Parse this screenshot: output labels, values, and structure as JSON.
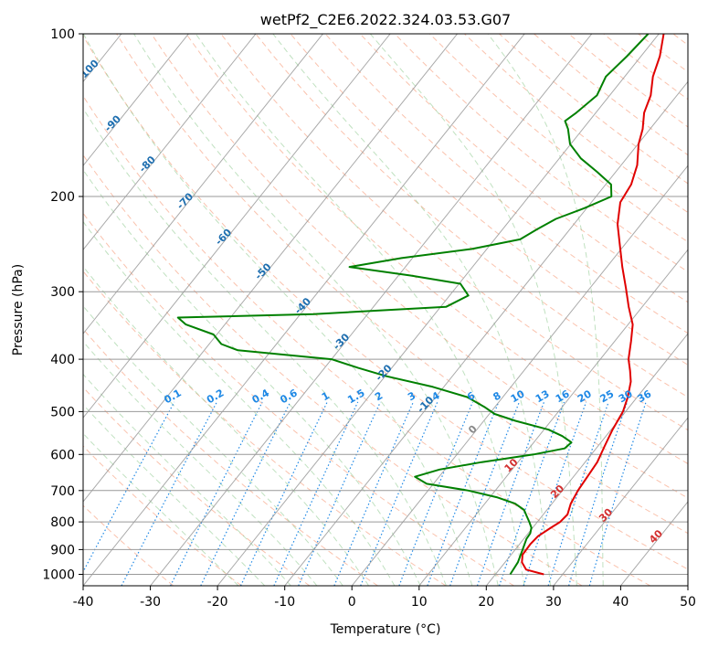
{
  "chart_data": {
    "type": "line",
    "title": "wetPf2_C2E6.2022.324.03.53.G07",
    "xlabel": "Temperature (°C)",
    "ylabel": "Pressure (hPa)",
    "xlim": [
      -40,
      50
    ],
    "ylim": [
      1050,
      100
    ],
    "y_scale": "log",
    "grid": true,
    "x_ticks": [
      -40,
      -30,
      -20,
      -10,
      0,
      10,
      20,
      30,
      40,
      50
    ],
    "y_ticks": [
      100,
      200,
      300,
      400,
      500,
      600,
      700,
      800,
      900,
      1000
    ],
    "isotherm_labels": [
      "-100",
      "-90",
      "-80",
      "-70",
      "-60",
      "-50",
      "-40",
      "-30",
      "-20",
      "-10",
      "0",
      "10",
      "20",
      "30",
      "40"
    ],
    "mixing_ratio_labels": [
      "0.1",
      "0.2",
      "0.4",
      "0.6",
      "1",
      "1.5",
      "2",
      "3",
      "4",
      "6",
      "8",
      "10",
      "13",
      "16",
      "20",
      "25",
      "30",
      "36"
    ],
    "series": [
      {
        "color": "#e00000",
        "points": [
          [
            1000,
            27.2
          ],
          [
            980,
            24.0
          ],
          [
            950,
            22.5
          ],
          [
            920,
            21.7
          ],
          [
            880,
            21.6
          ],
          [
            850,
            21.8
          ],
          [
            820,
            22.7
          ],
          [
            800,
            23.4
          ],
          [
            775,
            23.6
          ],
          [
            740,
            22.8
          ],
          [
            700,
            22.3
          ],
          [
            650,
            22.0
          ],
          [
            620,
            21.8
          ],
          [
            580,
            21.0
          ],
          [
            540,
            20.2
          ],
          [
            500,
            19.6
          ],
          [
            470,
            18.6
          ],
          [
            440,
            17.2
          ],
          [
            420,
            15.8
          ],
          [
            400,
            14.2
          ],
          [
            370,
            12.4
          ],
          [
            345,
            10.7
          ],
          [
            320,
            8.0
          ],
          [
            295,
            5.3
          ],
          [
            270,
            2.3
          ],
          [
            245,
            -0.8
          ],
          [
            225,
            -3.5
          ],
          [
            205,
            -5.7
          ],
          [
            190,
            -6.2
          ],
          [
            175,
            -7.6
          ],
          [
            160,
            -9.9
          ],
          [
            150,
            -11.1
          ],
          [
            140,
            -12.8
          ],
          [
            130,
            -13.9
          ],
          [
            120,
            -15.8
          ],
          [
            110,
            -17.2
          ],
          [
            100,
            -19.3
          ]
        ]
      },
      {
        "color": "#008000",
        "points": [
          [
            1000,
            22.2
          ],
          [
            950,
            21.9
          ],
          [
            900,
            21.1
          ],
          [
            860,
            20.4
          ],
          [
            840,
            20.3
          ],
          [
            820,
            19.8
          ],
          [
            800,
            18.8
          ],
          [
            780,
            17.7
          ],
          [
            760,
            16.6
          ],
          [
            740,
            14.5
          ],
          [
            720,
            11.0
          ],
          [
            700,
            6.0
          ],
          [
            680,
            -1.0
          ],
          [
            660,
            -3.6
          ],
          [
            640,
            -0.8
          ],
          [
            620,
            4.6
          ],
          [
            600,
            11.4
          ],
          [
            585,
            15.3
          ],
          [
            570,
            15.6
          ],
          [
            555,
            13.5
          ],
          [
            540,
            10.7
          ],
          [
            520,
            4.7
          ],
          [
            505,
            0.8
          ],
          [
            490,
            -1.6
          ],
          [
            470,
            -5.3
          ],
          [
            450,
            -11.6
          ],
          [
            430,
            -19.8
          ],
          [
            415,
            -25.0
          ],
          [
            400,
            -30.0
          ],
          [
            385,
            -45.0
          ],
          [
            375,
            -48.2
          ],
          [
            360,
            -50.5
          ],
          [
            345,
            -55.8
          ],
          [
            335,
            -57.8
          ],
          [
            330,
            -38.0
          ],
          [
            320,
            -19.2
          ],
          [
            305,
            -17.2
          ],
          [
            290,
            -19.8
          ],
          [
            280,
            -28.2
          ],
          [
            270,
            -38.3
          ],
          [
            260,
            -31.6
          ],
          [
            250,
            -22.2
          ],
          [
            240,
            -16.2
          ],
          [
            230,
            -14.9
          ],
          [
            220,
            -13.3
          ],
          [
            210,
            -10.3
          ],
          [
            200,
            -7.7
          ],
          [
            190,
            -9.2
          ],
          [
            180,
            -12.8
          ],
          [
            170,
            -16.8
          ],
          [
            160,
            -20.1
          ],
          [
            150,
            -22.2
          ],
          [
            145,
            -23.6
          ],
          [
            140,
            -22.9
          ],
          [
            130,
            -21.9
          ],
          [
            120,
            -22.8
          ],
          [
            110,
            -22.1
          ],
          [
            100,
            -21.6
          ]
        ]
      }
    ]
  }
}
